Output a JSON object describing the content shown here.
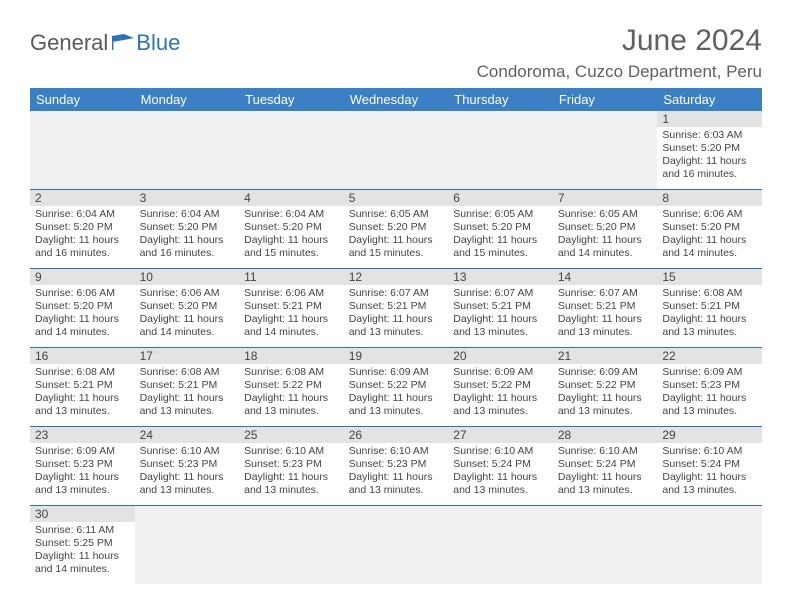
{
  "logo": {
    "general": "General",
    "blue": "Blue"
  },
  "title": "June 2024",
  "location": "Condoroma, Cuzco Department, Peru",
  "colors": {
    "header_bg": "#3b7fc4",
    "header_text": "#ffffff",
    "rule": "#2e72b6",
    "daynum_bg": "#e3e3e3",
    "body_text": "#444444",
    "title_text": "#606060"
  },
  "weekdays": [
    "Sunday",
    "Monday",
    "Tuesday",
    "Wednesday",
    "Thursday",
    "Friday",
    "Saturday"
  ],
  "first_weekday_index": 6,
  "days": [
    {
      "n": 1,
      "sunrise": "6:03 AM",
      "sunset": "5:20 PM",
      "daylight": "11 hours and 16 minutes."
    },
    {
      "n": 2,
      "sunrise": "6:04 AM",
      "sunset": "5:20 PM",
      "daylight": "11 hours and 16 minutes."
    },
    {
      "n": 3,
      "sunrise": "6:04 AM",
      "sunset": "5:20 PM",
      "daylight": "11 hours and 16 minutes."
    },
    {
      "n": 4,
      "sunrise": "6:04 AM",
      "sunset": "5:20 PM",
      "daylight": "11 hours and 15 minutes."
    },
    {
      "n": 5,
      "sunrise": "6:05 AM",
      "sunset": "5:20 PM",
      "daylight": "11 hours and 15 minutes."
    },
    {
      "n": 6,
      "sunrise": "6:05 AM",
      "sunset": "5:20 PM",
      "daylight": "11 hours and 15 minutes."
    },
    {
      "n": 7,
      "sunrise": "6:05 AM",
      "sunset": "5:20 PM",
      "daylight": "11 hours and 14 minutes."
    },
    {
      "n": 8,
      "sunrise": "6:06 AM",
      "sunset": "5:20 PM",
      "daylight": "11 hours and 14 minutes."
    },
    {
      "n": 9,
      "sunrise": "6:06 AM",
      "sunset": "5:20 PM",
      "daylight": "11 hours and 14 minutes."
    },
    {
      "n": 10,
      "sunrise": "6:06 AM",
      "sunset": "5:20 PM",
      "daylight": "11 hours and 14 minutes."
    },
    {
      "n": 11,
      "sunrise": "6:06 AM",
      "sunset": "5:21 PM",
      "daylight": "11 hours and 14 minutes."
    },
    {
      "n": 12,
      "sunrise": "6:07 AM",
      "sunset": "5:21 PM",
      "daylight": "11 hours and 13 minutes."
    },
    {
      "n": 13,
      "sunrise": "6:07 AM",
      "sunset": "5:21 PM",
      "daylight": "11 hours and 13 minutes."
    },
    {
      "n": 14,
      "sunrise": "6:07 AM",
      "sunset": "5:21 PM",
      "daylight": "11 hours and 13 minutes."
    },
    {
      "n": 15,
      "sunrise": "6:08 AM",
      "sunset": "5:21 PM",
      "daylight": "11 hours and 13 minutes."
    },
    {
      "n": 16,
      "sunrise": "6:08 AM",
      "sunset": "5:21 PM",
      "daylight": "11 hours and 13 minutes."
    },
    {
      "n": 17,
      "sunrise": "6:08 AM",
      "sunset": "5:21 PM",
      "daylight": "11 hours and 13 minutes."
    },
    {
      "n": 18,
      "sunrise": "6:08 AM",
      "sunset": "5:22 PM",
      "daylight": "11 hours and 13 minutes."
    },
    {
      "n": 19,
      "sunrise": "6:09 AM",
      "sunset": "5:22 PM",
      "daylight": "11 hours and 13 minutes."
    },
    {
      "n": 20,
      "sunrise": "6:09 AM",
      "sunset": "5:22 PM",
      "daylight": "11 hours and 13 minutes."
    },
    {
      "n": 21,
      "sunrise": "6:09 AM",
      "sunset": "5:22 PM",
      "daylight": "11 hours and 13 minutes."
    },
    {
      "n": 22,
      "sunrise": "6:09 AM",
      "sunset": "5:23 PM",
      "daylight": "11 hours and 13 minutes."
    },
    {
      "n": 23,
      "sunrise": "6:09 AM",
      "sunset": "5:23 PM",
      "daylight": "11 hours and 13 minutes."
    },
    {
      "n": 24,
      "sunrise": "6:10 AM",
      "sunset": "5:23 PM",
      "daylight": "11 hours and 13 minutes."
    },
    {
      "n": 25,
      "sunrise": "6:10 AM",
      "sunset": "5:23 PM",
      "daylight": "11 hours and 13 minutes."
    },
    {
      "n": 26,
      "sunrise": "6:10 AM",
      "sunset": "5:23 PM",
      "daylight": "11 hours and 13 minutes."
    },
    {
      "n": 27,
      "sunrise": "6:10 AM",
      "sunset": "5:24 PM",
      "daylight": "11 hours and 13 minutes."
    },
    {
      "n": 28,
      "sunrise": "6:10 AM",
      "sunset": "5:24 PM",
      "daylight": "11 hours and 13 minutes."
    },
    {
      "n": 29,
      "sunrise": "6:10 AM",
      "sunset": "5:24 PM",
      "daylight": "11 hours and 13 minutes."
    },
    {
      "n": 30,
      "sunrise": "6:11 AM",
      "sunset": "5:25 PM",
      "daylight": "11 hours and 14 minutes."
    }
  ],
  "labels": {
    "sunrise": "Sunrise:",
    "sunset": "Sunset:",
    "daylight": "Daylight:"
  }
}
